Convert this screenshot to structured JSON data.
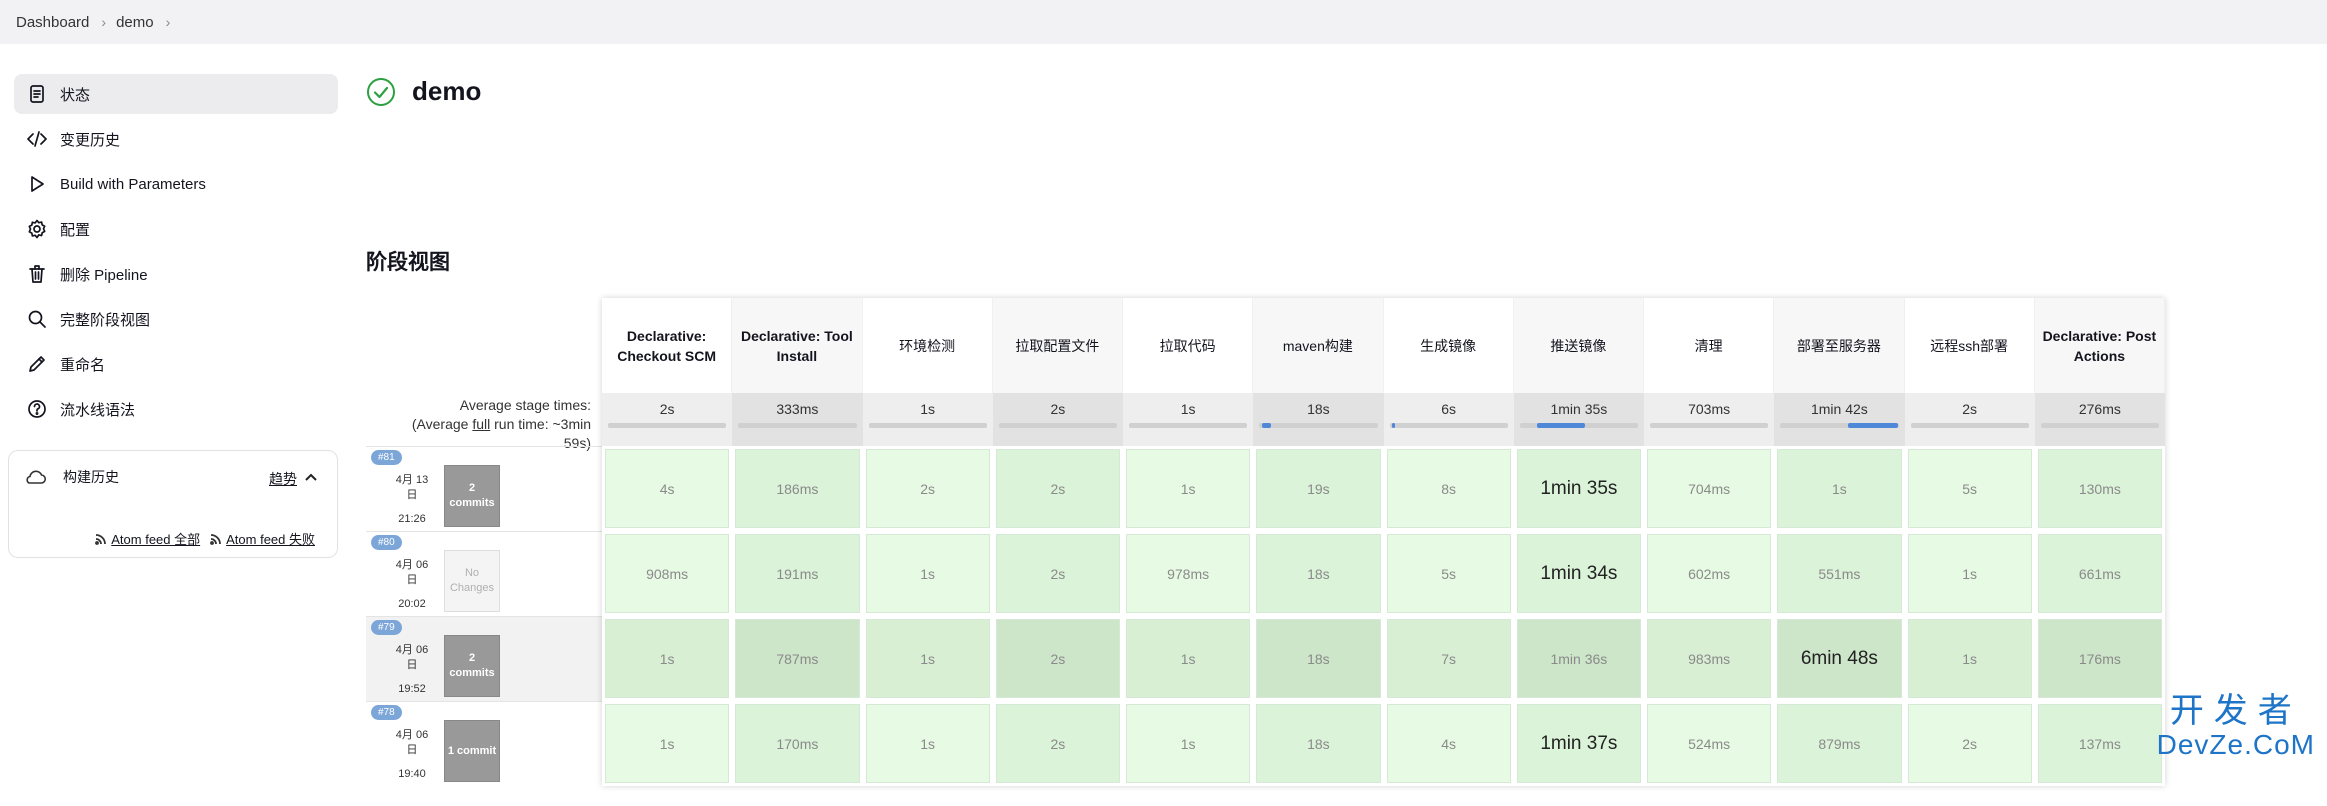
{
  "breadcrumb": [
    "Dashboard",
    "demo"
  ],
  "sidebar": {
    "items": [
      {
        "label": "状态",
        "icon": "document-icon",
        "active": true
      },
      {
        "label": "变更历史",
        "icon": "code-icon",
        "active": false
      },
      {
        "label": "Build with Parameters",
        "icon": "play-icon",
        "active": false
      },
      {
        "label": "配置",
        "icon": "gear-icon",
        "active": false
      },
      {
        "label": "删除 Pipeline",
        "icon": "trash-icon",
        "active": false
      },
      {
        "label": "完整阶段视图",
        "icon": "search-icon",
        "active": false
      },
      {
        "label": "重命名",
        "icon": "pencil-icon",
        "active": false
      },
      {
        "label": "流水线语法",
        "icon": "help-icon",
        "active": false
      }
    ],
    "build_history": {
      "title": "构建历史",
      "trend_label": "趋势",
      "feed_all": "Atom feed 全部",
      "feed_failed": "Atom feed 失败"
    }
  },
  "main": {
    "title": "demo",
    "status": "success",
    "section_title": "阶段视图"
  },
  "stage_view": {
    "avg_label_prefix": "Average stage times:",
    "avg_label_line2_pre": "(Average ",
    "avg_label_full": "full",
    "avg_label_line2_post": " run time: ~3min",
    "avg_label_line3": "59s)",
    "stages": [
      {
        "name": "Declarative: Checkout SCM",
        "bold": true,
        "avg": "2s",
        "avg_bar_fraction": 0.0
      },
      {
        "name": "Declarative: Tool Install",
        "bold": true,
        "avg": "333ms",
        "avg_bar_fraction": 0.0
      },
      {
        "name": "环境检测",
        "bold": false,
        "avg": "1s",
        "avg_bar_fraction": 0.0
      },
      {
        "name": "拉取配置文件",
        "bold": false,
        "avg": "2s",
        "avg_bar_fraction": 0.0
      },
      {
        "name": "拉取代码",
        "bold": false,
        "avg": "1s",
        "avg_bar_fraction": 0.0
      },
      {
        "name": "maven构建",
        "bold": false,
        "avg": "18s",
        "avg_bar_fraction": 0.08
      },
      {
        "name": "生成镜像",
        "bold": false,
        "avg": "6s",
        "avg_bar_fraction": 0.03
      },
      {
        "name": "推送镜像",
        "bold": false,
        "avg": "1min 35s",
        "avg_bar_fraction": 0.4
      },
      {
        "name": "清理",
        "bold": false,
        "avg": "703ms",
        "avg_bar_fraction": 0.0
      },
      {
        "name": "部署至服务器",
        "bold": false,
        "avg": "1min 42s",
        "avg_bar_fraction": 0.43
      },
      {
        "name": "远程ssh部署",
        "bold": false,
        "avg": "2s",
        "avg_bar_fraction": 0.0
      },
      {
        "name": "Declarative: Post Actions",
        "bold": true,
        "avg": "276ms",
        "avg_bar_fraction": 0.0
      }
    ],
    "builds": [
      {
        "number": "#81",
        "date": "4月 13 日",
        "time": "21:26",
        "changes": "2 commits",
        "has_changes": true,
        "durations": [
          "4s",
          "186ms",
          "2s",
          "2s",
          "1s",
          "19s",
          "8s",
          "1min 35s",
          "704ms",
          "1s",
          "5s",
          "130ms"
        ],
        "highlight": [
          false,
          false,
          false,
          false,
          false,
          false,
          false,
          true,
          false,
          false,
          false,
          false
        ]
      },
      {
        "number": "#80",
        "date": "4月 06 日",
        "time": "20:02",
        "changes": "No Changes",
        "has_changes": false,
        "durations": [
          "908ms",
          "191ms",
          "1s",
          "2s",
          "978ms",
          "18s",
          "5s",
          "1min 34s",
          "602ms",
          "551ms",
          "1s",
          "661ms"
        ],
        "highlight": [
          false,
          false,
          false,
          false,
          false,
          false,
          false,
          true,
          false,
          false,
          false,
          false
        ]
      },
      {
        "number": "#79",
        "date": "4月 06 日",
        "time": "19:52",
        "changes": "2 commits",
        "has_changes": true,
        "durations": [
          "1s",
          "787ms",
          "1s",
          "2s",
          "1s",
          "18s",
          "7s",
          "1min 36s",
          "983ms",
          "6min 48s",
          "1s",
          "176ms"
        ],
        "highlight": [
          false,
          false,
          false,
          false,
          false,
          false,
          false,
          false,
          false,
          true,
          false,
          false
        ]
      },
      {
        "number": "#78",
        "date": "4月 06 日",
        "time": "19:40",
        "changes": "1 commit",
        "has_changes": true,
        "durations": [
          "1s",
          "170ms",
          "1s",
          "2s",
          "1s",
          "18s",
          "4s",
          "1min 37s",
          "524ms",
          "879ms",
          "2s",
          "137ms"
        ],
        "highlight": [
          false,
          false,
          false,
          false,
          false,
          false,
          false,
          true,
          false,
          false,
          false,
          false
        ]
      }
    ]
  },
  "watermark": {
    "line1": "开发者",
    "line2": "DevZe.CoM"
  },
  "colors": {
    "success": "#2da042",
    "accent": "#4f88d8",
    "badge": "#7da6d8"
  }
}
